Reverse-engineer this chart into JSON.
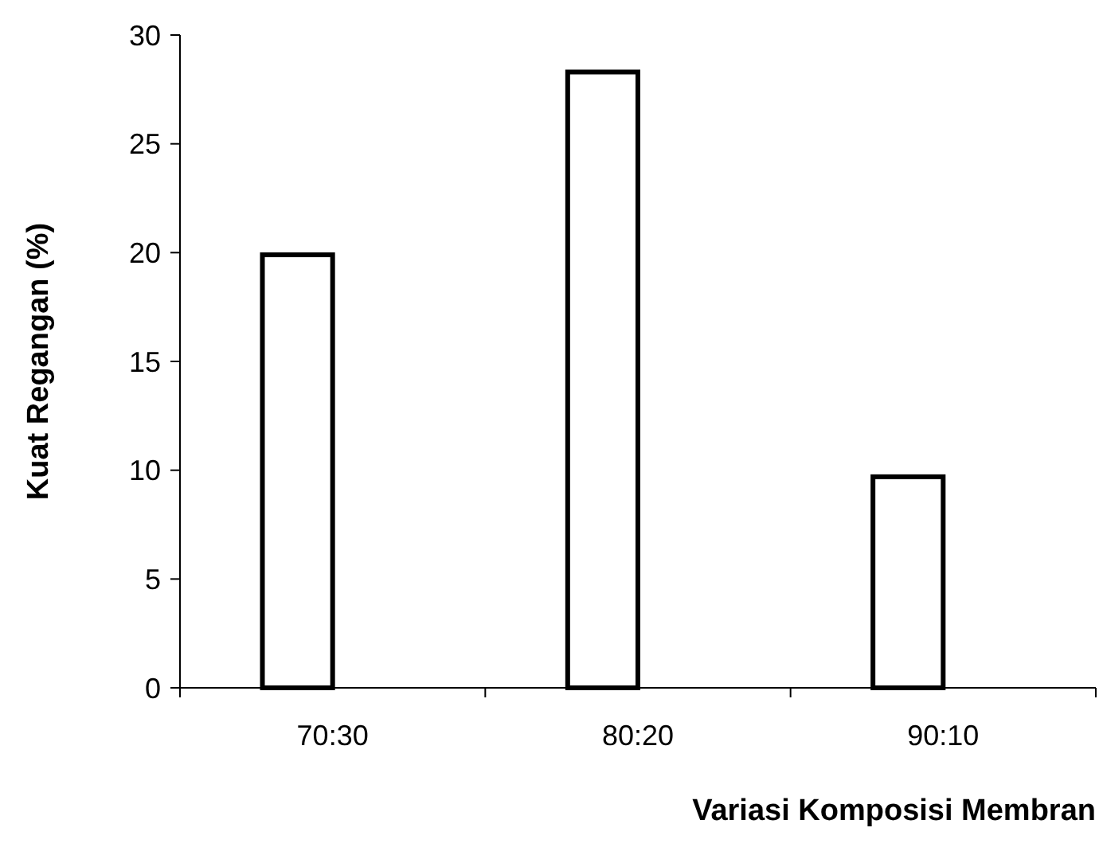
{
  "chart_data": {
    "type": "bar",
    "xlabel": "Variasi Komposisi Membran",
    "ylabel": "Kuat Regangan (%)",
    "categories": [
      "70:30",
      "80:20",
      "90:10"
    ],
    "values": [
      19.9,
      28.3,
      9.7
    ],
    "color": "#ffffff",
    "ylim": [
      0,
      30
    ],
    "yticks": [
      0,
      5,
      10,
      15,
      20,
      25,
      30
    ],
    "grid": false
  }
}
